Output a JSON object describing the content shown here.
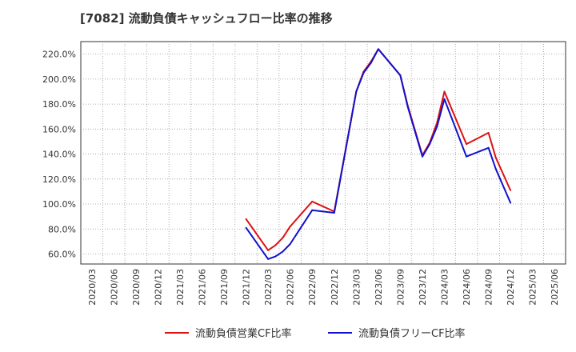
{
  "chart_data": {
    "type": "line",
    "title": "[7082]  流動負債キャッシュフロー比率の推移",
    "xlabel": "",
    "ylabel": "",
    "ylim": [
      52,
      230
    ],
    "y_ticks": [
      60,
      80,
      100,
      120,
      140,
      160,
      180,
      200,
      220
    ],
    "y_tick_labels": [
      "60.0%",
      "80.0%",
      "100.0%",
      "120.0%",
      "140.0%",
      "160.0%",
      "180.0%",
      "200.0%",
      "220.0%"
    ],
    "x_ticks": [
      "2020/03",
      "2020/06",
      "2020/09",
      "2020/12",
      "2021/03",
      "2021/06",
      "2021/09",
      "2021/12",
      "2022/03",
      "2022/06",
      "2022/09",
      "2022/12",
      "2023/03",
      "2023/06",
      "2023/09",
      "2023/12",
      "2024/03",
      "2024/06",
      "2024/09",
      "2024/12",
      "2025/03",
      "2025/06"
    ],
    "grid": true,
    "legend_position": "bottom",
    "series": [
      {
        "name": "流動負債営業CF比率",
        "color": "#dd1111",
        "x": [
          "2021/12",
          "2022/03",
          "2022/04",
          "2022/05",
          "2022/06",
          "2022/09",
          "2022/12",
          "2023/03",
          "2023/04",
          "2023/05",
          "2023/06",
          "2023/09",
          "2023/10",
          "2023/12",
          "2024/01",
          "2024/02",
          "2024/03",
          "2024/06",
          "2024/09",
          "2024/10",
          "2024/12"
        ],
        "values": [
          88,
          63,
          67,
          73,
          82,
          102,
          94,
          190,
          206,
          214,
          224,
          203,
          179,
          139,
          149,
          165,
          190,
          148,
          157,
          137,
          111
        ]
      },
      {
        "name": "流動負債フリーCF比率",
        "color": "#1111cc",
        "x": [
          "2021/12",
          "2022/03",
          "2022/04",
          "2022/05",
          "2022/06",
          "2022/09",
          "2022/12",
          "2023/03",
          "2023/04",
          "2023/05",
          "2023/06",
          "2023/09",
          "2023/10",
          "2023/12",
          "2024/01",
          "2024/02",
          "2024/03",
          "2024/06",
          "2024/09",
          "2024/10",
          "2024/12"
        ],
        "values": [
          81,
          56,
          58,
          62,
          68,
          95,
          93,
          190,
          205,
          213,
          224,
          203,
          178,
          138,
          148,
          162,
          184,
          138,
          145,
          128,
          101
        ]
      }
    ]
  }
}
